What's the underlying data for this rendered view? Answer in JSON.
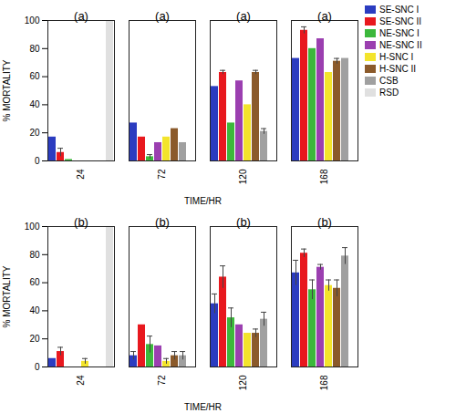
{
  "chart_data": [
    {
      "type": "bar",
      "title": "(a)",
      "x_label": "TIME/HR",
      "y_label": "% MORTALITY",
      "categories": [
        24,
        72,
        120,
        168
      ],
      "ylim": [
        0,
        100
      ],
      "yticks": [
        0,
        20,
        40,
        60,
        80,
        100
      ],
      "grid": false,
      "legend": "top-right",
      "series": [
        {
          "name": "SE-SNC I",
          "color": "#2b3cc0",
          "values": [
            17,
            27,
            53,
            73
          ],
          "errors": [
            0,
            0,
            0,
            0
          ]
        },
        {
          "name": "SE-SNC II",
          "color": "#e8181e",
          "values": [
            6,
            17,
            63,
            93
          ],
          "errors": [
            3,
            0,
            1.5,
            2.5
          ]
        },
        {
          "name": "NE-SNC I",
          "color": "#3cb83c",
          "values": [
            1,
            3,
            27,
            80
          ],
          "errors": [
            0,
            1.5,
            0,
            0
          ]
        },
        {
          "name": "NE-SNC II",
          "color": "#9b3fb0",
          "values": [
            0,
            13,
            57,
            87
          ],
          "errors": [
            0,
            0,
            0,
            0
          ]
        },
        {
          "name": "H-SNC I",
          "color": "#f3e42c",
          "values": [
            0,
            17,
            40,
            63
          ],
          "errors": [
            0,
            0,
            0,
            0
          ]
        },
        {
          "name": "H-SNC II",
          "color": "#8b5a2b",
          "values": [
            0,
            23,
            63,
            71
          ],
          "errors": [
            0,
            0,
            1.5,
            2
          ]
        },
        {
          "name": "CSB",
          "color": "#a0a0a0",
          "values": [
            0,
            13,
            21,
            73
          ],
          "errors": [
            0,
            0,
            2,
            0
          ]
        },
        {
          "name": "RSD",
          "color": "#e0e0e0",
          "values": [
            100,
            null,
            null,
            null
          ],
          "errors": [
            0,
            null,
            null,
            null
          ]
        }
      ]
    },
    {
      "type": "bar",
      "title": "(b)",
      "x_label": "TIME/HR",
      "y_label": "% MORTALITY",
      "categories": [
        24,
        72,
        120,
        168
      ],
      "ylim": [
        0,
        100
      ],
      "yticks": [
        0,
        20,
        40,
        60,
        80,
        100
      ],
      "grid": false,
      "series": [
        {
          "name": "SE-SNC I",
          "color": "#2b3cc0",
          "values": [
            6,
            8,
            45,
            67
          ],
          "errors": [
            0,
            3,
            7,
            9
          ]
        },
        {
          "name": "SE-SNC II",
          "color": "#e8181e",
          "values": [
            11,
            30,
            64,
            81
          ],
          "errors": [
            3,
            0,
            8,
            3
          ]
        },
        {
          "name": "NE-SNC I",
          "color": "#3cb83c",
          "values": [
            0,
            16,
            35,
            55
          ],
          "errors": [
            0,
            6,
            7,
            7
          ]
        },
        {
          "name": "NE-SNC II",
          "color": "#9b3fb0",
          "values": [
            0,
            15,
            30,
            71
          ],
          "errors": [
            0,
            0,
            0,
            2
          ]
        },
        {
          "name": "H-SNC I",
          "color": "#f3e42c",
          "values": [
            4,
            4,
            24,
            58
          ],
          "errors": [
            2,
            2,
            0,
            4
          ]
        },
        {
          "name": "H-SNC II",
          "color": "#8b5a2b",
          "values": [
            0,
            8,
            24,
            56
          ],
          "errors": [
            0,
            3,
            3,
            6
          ]
        },
        {
          "name": "CSB",
          "color": "#a0a0a0",
          "values": [
            0,
            8,
            34,
            79
          ],
          "errors": [
            0,
            3,
            5,
            6
          ]
        },
        {
          "name": "RSD",
          "color": "#e0e0e0",
          "values": [
            100,
            null,
            null,
            null
          ],
          "errors": [
            0,
            null,
            null,
            null
          ]
        }
      ]
    }
  ]
}
